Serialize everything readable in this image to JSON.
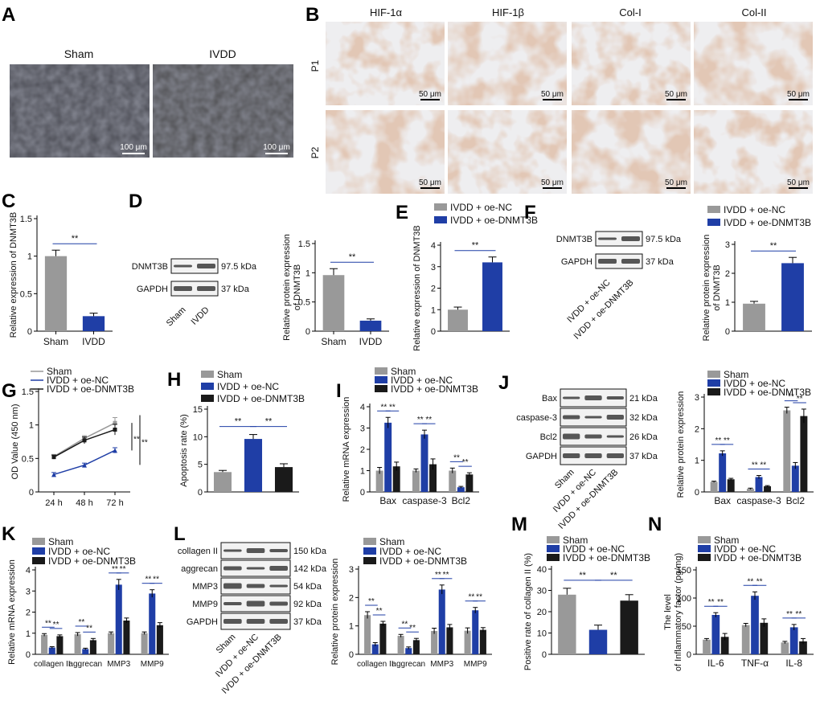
{
  "colors": {
    "gray": "#999999",
    "blue": "#1f3ea6",
    "black": "#1a1a1a",
    "micro_bg": "#46474f",
    "stain_bg": "#eeeef0",
    "stain": "#c49a80"
  },
  "panels": {
    "A": {
      "label": "A",
      "images": [
        {
          "name": "Sham",
          "scale_bar": "100 μm"
        },
        {
          "name": "IVDD",
          "scale_bar": "100 μm"
        }
      ]
    },
    "B": {
      "label": "B",
      "columns": [
        "HIF-1α",
        "HIF-1β",
        "Col-I",
        "Col-II"
      ],
      "rows": [
        "P1",
        "P2"
      ],
      "scale_bar": "50 μm"
    },
    "D": {
      "label": "D",
      "blot": {
        "rows": [
          {
            "name": "DNMT3B",
            "kda": "97.5 kDa"
          },
          {
            "name": "GAPDH",
            "kda": "37 kDa"
          }
        ],
        "lanes": [
          "Sham",
          "IVDD"
        ]
      }
    },
    "F": {
      "label": "F",
      "blot": {
        "rows": [
          {
            "name": "DNMT3B",
            "kda": "97.5 kDa"
          },
          {
            "name": "GAPDH",
            "kda": "37 kDa"
          }
        ],
        "lanes": [
          "IVDD + oe-NC",
          "IVDD + oe-DNMT3B"
        ]
      }
    },
    "J": {
      "label": "J",
      "blot": {
        "rows": [
          {
            "name": "Bax",
            "kda": "21 kDa"
          },
          {
            "name": "caspase-3",
            "kda": "32 kDa"
          },
          {
            "name": "Bcl2",
            "kda": "26 kDa"
          },
          {
            "name": "GAPDH",
            "kda": "37 kDa"
          }
        ],
        "lanes": [
          "Sham",
          "IVDD + oe-NC",
          "IVDD + oe-DNMT3B"
        ]
      }
    },
    "L": {
      "label": "L",
      "blot": {
        "rows": [
          {
            "name": "collagen II",
            "kda": "150 kDa"
          },
          {
            "name": "aggrecan",
            "kda": "142 kDa"
          },
          {
            "name": "MMP3",
            "kda": "54 kDa"
          },
          {
            "name": "MMP9",
            "kda": "92 kDa"
          },
          {
            "name": "GAPDH",
            "kda": "37 kDa"
          }
        ],
        "lanes": [
          "Sham",
          "IVDD + oe-NC",
          "IVDD + oe-DNMT3B"
        ]
      }
    }
  },
  "chart_data": [
    {
      "id": "C",
      "label": "C",
      "type": "bar",
      "ylabel": "Relative expression of DNMT3B",
      "ylim": [
        0,
        1.5
      ],
      "yticks": [
        0,
        0.5,
        1.0,
        1.5
      ],
      "categories": [
        "Sham",
        "IVDD"
      ],
      "series": [
        {
          "values": [
            1.0,
            0.2
          ],
          "errors": [
            0.08,
            0.04
          ]
        }
      ],
      "annotations": [
        "**"
      ]
    },
    {
      "id": "D",
      "label": "",
      "type": "bar",
      "ylabel": "Relative protein expression of DNMT3B",
      "ylim": [
        0,
        1.5
      ],
      "yticks": [
        0,
        0.5,
        1.0,
        1.5
      ],
      "categories": [
        "Sham",
        "IVDD"
      ],
      "series": [
        {
          "values": [
            0.96,
            0.18
          ],
          "errors": [
            0.11,
            0.03
          ]
        }
      ],
      "annotations": [
        "**"
      ]
    },
    {
      "id": "E",
      "label": "E",
      "type": "bar",
      "ylabel": "Relative expression of DNMT3B",
      "ylim": [
        0,
        4
      ],
      "yticks": [
        0,
        1,
        2,
        3,
        4
      ],
      "legend": [
        "IVDD + oe-NC",
        "IVDD + oe-DNMT3B"
      ],
      "categories": [
        "IVDD + oe-NC",
        "IVDD + oe-DNMT3B"
      ],
      "series": [
        {
          "values": [
            1.0,
            3.2
          ],
          "errors": [
            0.12,
            0.25
          ]
        }
      ],
      "annotations": [
        "**"
      ]
    },
    {
      "id": "F",
      "label": "",
      "type": "bar",
      "ylabel": "Relative protein expression of DNMT3B",
      "ylim": [
        0,
        3
      ],
      "yticks": [
        0,
        1,
        2,
        3
      ],
      "legend": [
        "IVDD + oe-NC",
        "IVDD + oe-DNMT3B"
      ],
      "categories": [
        "IVDD + oe-NC",
        "IVDD + oe-DNMT3B"
      ],
      "series": [
        {
          "values": [
            0.95,
            2.35
          ],
          "errors": [
            0.08,
            0.2
          ]
        }
      ],
      "annotations": [
        "**"
      ]
    },
    {
      "id": "G",
      "label": "G",
      "type": "line",
      "ylabel": "OD Value (450 nm)",
      "ylim": [
        0,
        1.5
      ],
      "yticks": [
        0,
        0.5,
        1.0,
        1.5
      ],
      "x": [
        "24 h",
        "48 h",
        "72 h"
      ],
      "series": [
        {
          "name": "Sham",
          "values": [
            0.53,
            0.8,
            1.03
          ],
          "errors": [
            0.03,
            0.04,
            0.08
          ]
        },
        {
          "name": "IVDD + oe-NC",
          "values": [
            0.26,
            0.4,
            0.62
          ],
          "errors": [
            0.03,
            0.03,
            0.04
          ]
        },
        {
          "name": "IVDD + oe-DNMT3B",
          "values": [
            0.52,
            0.77,
            0.93
          ],
          "errors": [
            0.03,
            0.05,
            0.08
          ]
        }
      ],
      "annotations": [
        "**",
        "**"
      ]
    },
    {
      "id": "H",
      "label": "H",
      "type": "bar",
      "ylabel": "Apoptosis rate (%)",
      "ylim": [
        0,
        15
      ],
      "yticks": [
        0,
        5,
        10,
        15
      ],
      "legend": [
        "Sham",
        "IVDD + oe-NC",
        "IVDD + oe-DNMT3B"
      ],
      "categories": [
        "Sham",
        "IVDD + oe-NC",
        "IVDD + oe-DNMT3B"
      ],
      "series": [
        {
          "values": [
            3.6,
            9.6,
            4.5
          ],
          "errors": [
            0.3,
            0.8,
            0.6
          ]
        }
      ],
      "annotations": [
        "**",
        "**"
      ]
    },
    {
      "id": "I",
      "label": "I",
      "type": "bar",
      "ylabel": "Relative mRNA expression",
      "ylim": [
        0,
        4
      ],
      "yticks": [
        0,
        1,
        2,
        3,
        4
      ],
      "legend": [
        "Sham",
        "IVDD + oe-NC",
        "IVDD + oe-DNMT3B"
      ],
      "categories": [
        "Bax",
        "caspase-3",
        "Bcl2"
      ],
      "series": [
        {
          "name": "Sham",
          "values": [
            1.0,
            1.0,
            1.0
          ],
          "errors": [
            0.15,
            0.08,
            0.12
          ]
        },
        {
          "name": "IVDD + oe-NC",
          "values": [
            3.25,
            2.7,
            0.22
          ],
          "errors": [
            0.25,
            0.2,
            0.04
          ]
        },
        {
          "name": "IVDD + oe-DNMT3B",
          "values": [
            1.2,
            1.3,
            0.82
          ],
          "errors": [
            0.2,
            0.25,
            0.08
          ]
        }
      ],
      "annotations": [
        "**",
        "**"
      ]
    },
    {
      "id": "J",
      "label": "",
      "type": "bar",
      "ylabel": "Relative protein expression",
      "ylim": [
        0,
        3
      ],
      "yticks": [
        0,
        1,
        2,
        3
      ],
      "legend": [
        "Sham",
        "IVDD + oe-NC",
        "IVDD + oe-DNMT3B"
      ],
      "categories": [
        "Bax",
        "caspase-3",
        "Bcl2"
      ],
      "series": [
        {
          "name": "Sham",
          "values": [
            0.32,
            0.1,
            2.58
          ],
          "errors": [
            0.02,
            0.02,
            0.1
          ]
        },
        {
          "name": "IVDD + oe-NC",
          "values": [
            1.22,
            0.47,
            0.83
          ],
          "errors": [
            0.08,
            0.05,
            0.1
          ]
        },
        {
          "name": "IVDD + oe-DNMT3B",
          "values": [
            0.4,
            0.18,
            2.4
          ],
          "errors": [
            0.03,
            0.02,
            0.22
          ]
        }
      ],
      "annotations": [
        "**",
        "**"
      ]
    },
    {
      "id": "K",
      "label": "K",
      "type": "bar",
      "ylabel": "Relative mRNA expression",
      "ylim": [
        0,
        4
      ],
      "yticks": [
        0,
        1,
        2,
        3,
        4
      ],
      "legend": [
        "Sham",
        "IVDD + oe-NC",
        "IVDD + oe-DNMT3B"
      ],
      "categories": [
        "collagen II",
        "aggrecan",
        "MMP3",
        "MMP9"
      ],
      "series": [
        {
          "name": "Sham",
          "values": [
            0.92,
            0.95,
            1.0,
            1.0
          ],
          "errors": [
            0.06,
            0.08,
            0.06,
            0.06
          ]
        },
        {
          "name": "IVDD + oe-NC",
          "values": [
            0.32,
            0.25,
            3.3,
            2.88
          ],
          "errors": [
            0.04,
            0.04,
            0.25,
            0.18
          ]
        },
        {
          "name": "IVDD + oe-DNMT3B",
          "values": [
            0.86,
            0.67,
            1.6,
            1.38
          ],
          "errors": [
            0.06,
            0.08,
            0.12,
            0.12
          ]
        }
      ],
      "annotations": [
        "**",
        "**"
      ]
    },
    {
      "id": "L",
      "label": "",
      "type": "bar",
      "ylabel": "Relative protein expression",
      "ylim": [
        0,
        3
      ],
      "yticks": [
        0,
        1,
        2,
        3
      ],
      "legend": [
        "Sham",
        "IVDD + oe-NC",
        "IVDD + oe-DNMT3B"
      ],
      "categories": [
        "collagen II",
        "aggrecan",
        "MMP3",
        "MMP9"
      ],
      "series": [
        {
          "name": "Sham",
          "values": [
            1.38,
            0.65,
            0.82,
            0.83
          ],
          "errors": [
            0.12,
            0.05,
            0.1,
            0.1
          ]
        },
        {
          "name": "IVDD + oe-NC",
          "values": [
            0.35,
            0.22,
            2.28,
            1.55
          ],
          "errors": [
            0.06,
            0.04,
            0.16,
            0.1
          ]
        },
        {
          "name": "IVDD + oe-DNMT3B",
          "values": [
            1.08,
            0.5,
            0.95,
            0.86
          ],
          "errors": [
            0.08,
            0.06,
            0.1,
            0.08
          ]
        }
      ],
      "annotations": [
        "**",
        "**"
      ]
    },
    {
      "id": "M",
      "label": "M",
      "type": "bar",
      "ylabel": "Positive rate of collagen II (%)",
      "ylim": [
        0,
        40
      ],
      "yticks": [
        0,
        10,
        20,
        30,
        40
      ],
      "legend": [
        "Sham",
        "IVDD + oe-NC",
        "IVDD + oe-DNMT3B"
      ],
      "categories": [
        "Sham",
        "IVDD + oe-NC",
        "IVDD + oe-DNMT3B"
      ],
      "series": [
        {
          "values": [
            28,
            11.5,
            25.2
          ],
          "errors": [
            3,
            2.2,
            2.8
          ]
        }
      ],
      "annotations": [
        "**",
        "**"
      ]
    },
    {
      "id": "N",
      "label": "N",
      "type": "bar",
      "ylabel": "The level of Inflammatory factor (pg/mg)",
      "ylim": [
        0,
        150
      ],
      "yticks": [
        0,
        50,
        100,
        150
      ],
      "legend": [
        "Sham",
        "IVDD + oe-NC",
        "IVDD + oe-DNMT3B"
      ],
      "categories": [
        "IL-6",
        "TNF-α",
        "IL-8"
      ],
      "series": [
        {
          "name": "Sham",
          "values": [
            26,
            52,
            21
          ],
          "errors": [
            2,
            3,
            2
          ]
        },
        {
          "name": "IVDD + oe-NC",
          "values": [
            70,
            104,
            48
          ],
          "errors": [
            4,
            7,
            5
          ]
        },
        {
          "name": "IVDD + oe-DNMT3B",
          "values": [
            31,
            56,
            23
          ],
          "errors": [
            6,
            7,
            5
          ]
        }
      ],
      "annotations": [
        "**",
        "**"
      ]
    }
  ]
}
